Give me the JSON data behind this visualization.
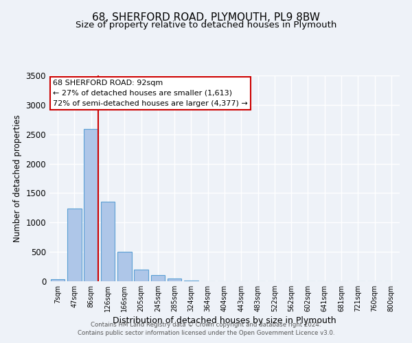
{
  "title": "68, SHERFORD ROAD, PLYMOUTH, PL9 8BW",
  "subtitle": "Size of property relative to detached houses in Plymouth",
  "xlabel": "Distribution of detached houses by size in Plymouth",
  "ylabel": "Number of detached properties",
  "bar_labels": [
    "7sqm",
    "47sqm",
    "86sqm",
    "126sqm",
    "166sqm",
    "205sqm",
    "245sqm",
    "285sqm",
    "324sqm",
    "364sqm",
    "404sqm",
    "443sqm",
    "483sqm",
    "522sqm",
    "562sqm",
    "602sqm",
    "641sqm",
    "681sqm",
    "721sqm",
    "760sqm",
    "800sqm"
  ],
  "bar_values": [
    40,
    1240,
    2590,
    1350,
    500,
    200,
    110,
    45,
    15,
    5,
    5,
    5,
    5,
    0,
    0,
    0,
    0,
    0,
    0,
    0,
    0
  ],
  "bar_color": "#aec6e8",
  "bar_edge_color": "#5a9fd4",
  "annotation_title": "68 SHERFORD ROAD: 92sqm",
  "annotation_line1": "← 27% of detached houses are smaller (1,613)",
  "annotation_line2": "72% of semi-detached houses are larger (4,377) →",
  "annotation_box_color": "#ffffff",
  "annotation_box_edge_color": "#cc0000",
  "vline_color": "#cc0000",
  "ylim": [
    0,
    3500
  ],
  "yticks": [
    0,
    500,
    1000,
    1500,
    2000,
    2500,
    3000,
    3500
  ],
  "footer1": "Contains HM Land Registry data © Crown copyright and database right 2024.",
  "footer2": "Contains public sector information licensed under the Open Government Licence v3.0.",
  "bg_color": "#eef2f8",
  "grid_color": "#ffffff",
  "title_fontsize": 11,
  "subtitle_fontsize": 9.5
}
